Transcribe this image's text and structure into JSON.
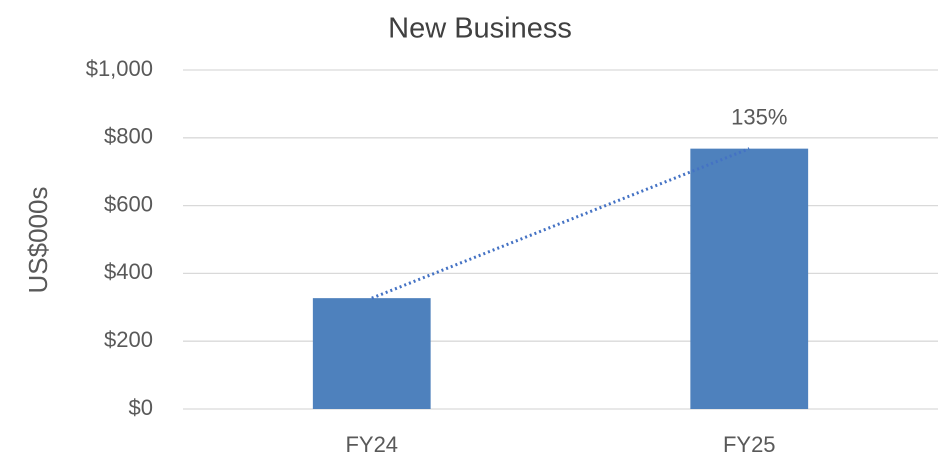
{
  "chart_data": {
    "type": "bar",
    "title": "New Business",
    "y_label": "US$000s",
    "categories": [
      "FY24",
      "FY25"
    ],
    "values": [
      327,
      768
    ],
    "color": "#4e81bd",
    "annotation": "135%",
    "trendline": true,
    "ylim": [
      0,
      1000
    ],
    "yticks": [
      {
        "value": 0,
        "label": "$0"
      },
      {
        "value": 200,
        "label": "$200"
      },
      {
        "value": 400,
        "label": "$400"
      },
      {
        "value": 600,
        "label": "$600"
      },
      {
        "value": 800,
        "label": "$800"
      },
      {
        "value": 1000,
        "label": "$1,000"
      }
    ],
    "grid": true
  }
}
